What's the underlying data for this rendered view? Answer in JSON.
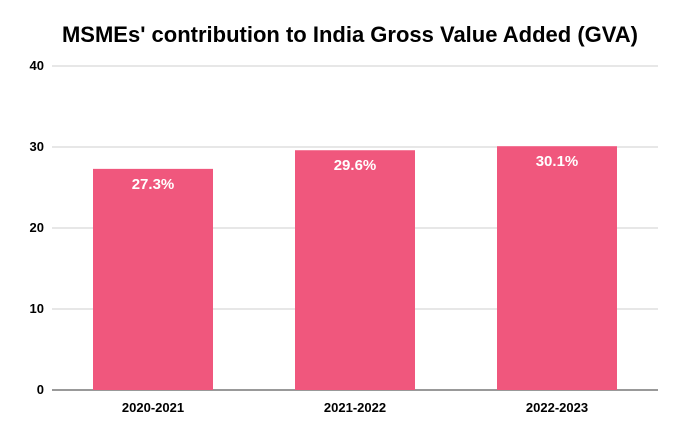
{
  "chart_data": {
    "type": "bar",
    "title": "MSMEs' contribution to India Gross Value Added (GVA)",
    "xlabel": "",
    "ylabel": "",
    "categories": [
      "2020-2021",
      "2021-2022",
      "2022-2023"
    ],
    "values": [
      27.3,
      29.6,
      30.1
    ],
    "data_labels": [
      "27.3%",
      "29.6%",
      "30.1%"
    ],
    "ylim": [
      0,
      40
    ],
    "yticks": [
      0,
      10,
      20,
      30,
      40
    ],
    "grid": true,
    "legend": "none",
    "bar_color": "#f0577d"
  }
}
